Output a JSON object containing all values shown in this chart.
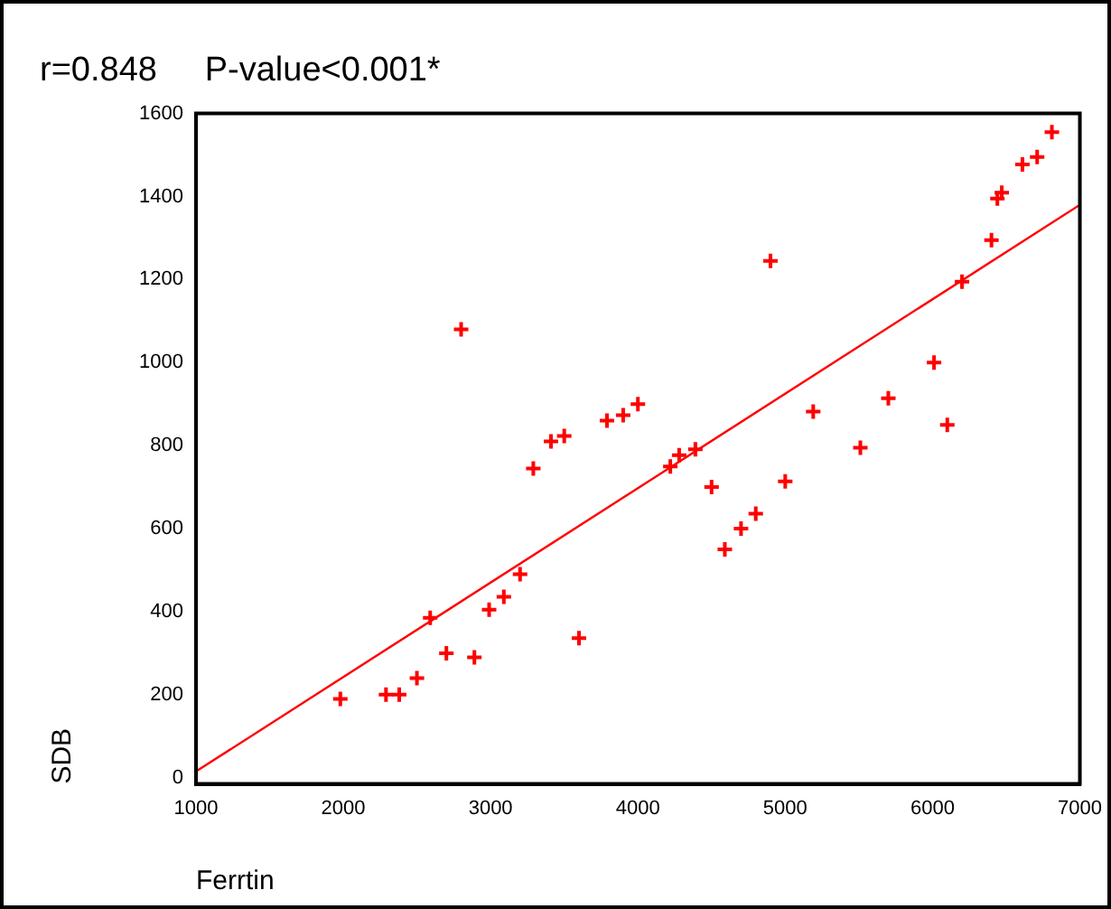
{
  "chart_data": {
    "type": "scatter",
    "title": "r=0.848     P-value<0.001*",
    "xlabel": "Ferrtin",
    "ylabel": "SDB",
    "xlim": [
      1000,
      7000
    ],
    "xticks": [
      1000,
      2000,
      3000,
      4000,
      5000,
      6000,
      7000
    ],
    "ylim": [
      -15,
      1600
    ],
    "yticks": [
      0,
      200,
      400,
      600,
      800,
      1000,
      1200,
      1400,
      1600
    ],
    "grid": false,
    "legend": false,
    "marker": "cross",
    "series": [
      {
        "color": "#ff0000",
        "x": [
          1980,
          2290,
          2380,
          2500,
          2590,
          2700,
          2800,
          2890,
          2990,
          3090,
          3200,
          3290,
          3410,
          3500,
          3600,
          3790,
          3900,
          4000,
          4220,
          4280,
          4390,
          4500,
          4590,
          4700,
          4800,
          4900,
          5000,
          5190,
          5510,
          5700,
          6010,
          6100,
          6200,
          6400,
          6440,
          6470,
          6610,
          6710,
          6810
        ],
        "values": [
          190,
          200,
          200,
          240,
          385,
          300,
          1080,
          290,
          405,
          436,
          490,
          745,
          810,
          823,
          336,
          860,
          873,
          900,
          750,
          777,
          791,
          700,
          550,
          600,
          636,
          1245,
          714,
          882,
          795,
          914,
          1000,
          850,
          1195,
          1295,
          1395,
          1409,
          1477,
          1495,
          1555
        ]
      },
      {
        "type": "line",
        "color": "#ff0000",
        "x": [
          1000,
          7000
        ],
        "values": [
          15,
          1380
        ],
        "marker": "none"
      }
    ]
  }
}
